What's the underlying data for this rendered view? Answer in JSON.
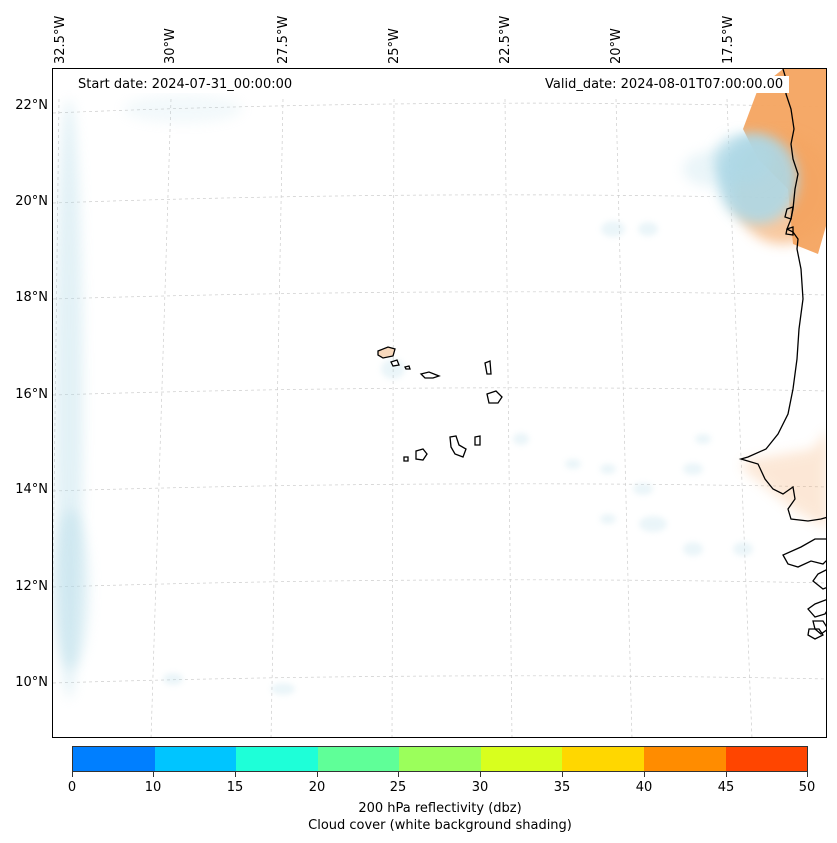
{
  "map": {
    "start_label": "Start date: 2024-07-31_00:00:00",
    "valid_label": "Valid_date: 2024-08-01T07:00:00.00",
    "lon_labels": [
      "32.5°W",
      "30°W",
      "27.5°W",
      "25°W",
      "22.5°W",
      "20°W",
      "17.5°W"
    ],
    "lat_labels": [
      "22°N",
      "20°N",
      "18°N",
      "16°N",
      "14°N",
      "12°N",
      "10°N"
    ],
    "colors": {
      "land_outline": "#000000",
      "cloud_shading": "#add8e6",
      "warm_shading": "#f4a460",
      "gridline": "#cccccc"
    }
  },
  "colorbar": {
    "ticks": [
      "0",
      "10",
      "15",
      "20",
      "25",
      "30",
      "35",
      "40",
      "45",
      "50"
    ],
    "colors": [
      "#007fff",
      "#00c5ff",
      "#1effd8",
      "#5fff98",
      "#9bff5b",
      "#d8ff1e",
      "#ffd700",
      "#ff8c00",
      "#ff4500"
    ],
    "label_line1": "200 hPa reflectivity (dbz)",
    "label_line2": "Cloud cover (white background shading)"
  }
}
